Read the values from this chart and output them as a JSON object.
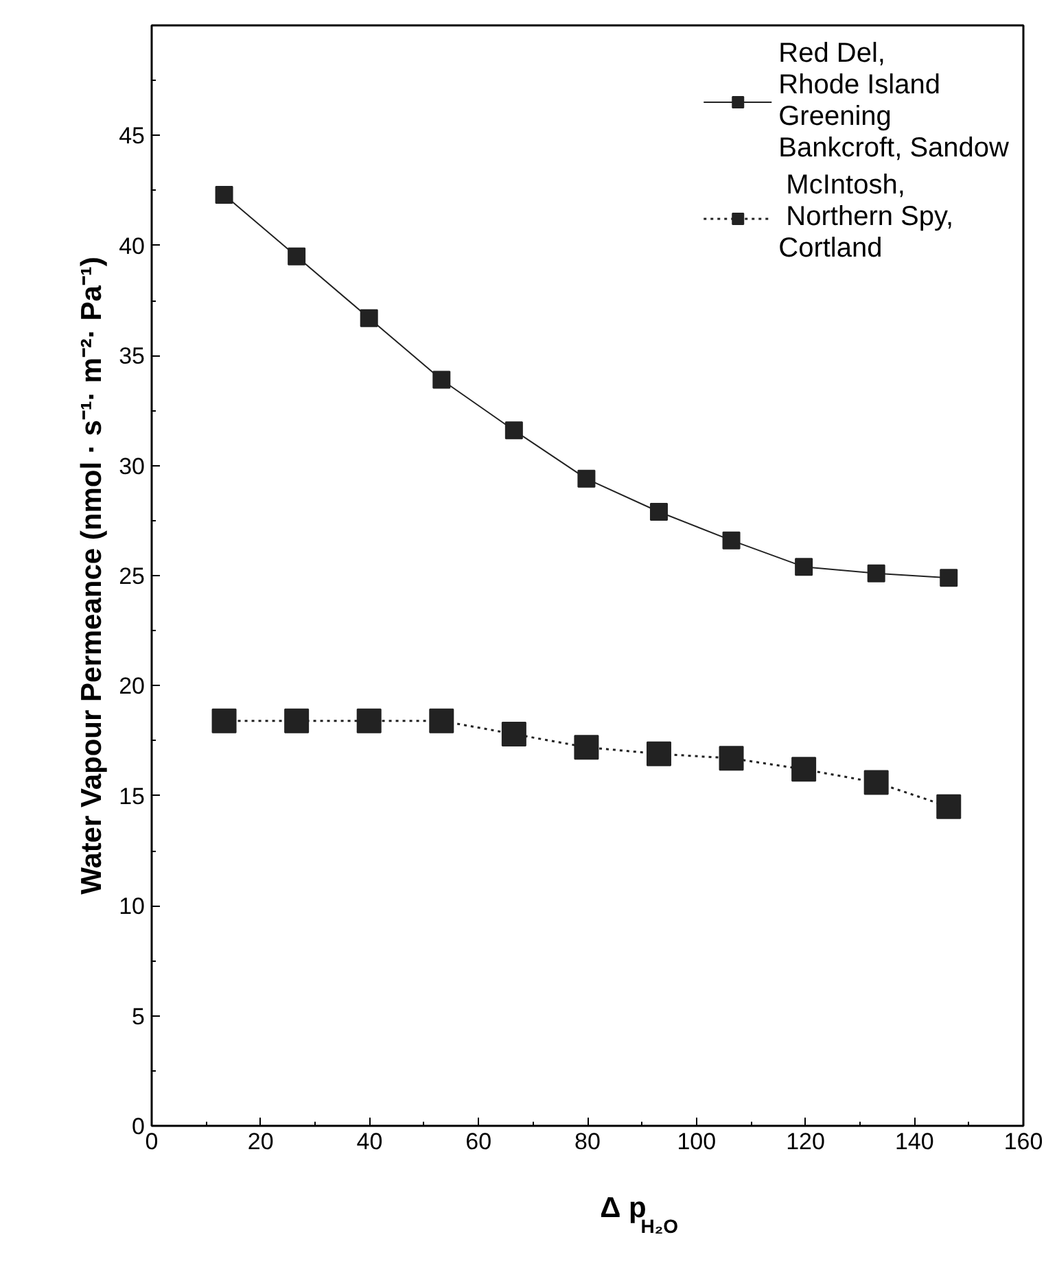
{
  "chart_data": {
    "type": "line",
    "xlabel": "Δ p$_{H₂O}$",
    "ylabel": "Water Vapour Permeance (nmol · s⁻¹· m⁻²· Pa⁻¹)",
    "x": [
      13.3,
      26.6,
      39.9,
      53.2,
      66.5,
      79.8,
      93.1,
      106.4,
      119.7,
      133,
      146.3
    ],
    "series": [
      {
        "name": "Red Del,\nRhode Island\nGreening\nBankcroft, Sandow",
        "color": "#222222",
        "marker": "square",
        "line_style": "solid",
        "values": [
          42.3,
          39.5,
          36.7,
          33.9,
          31.6,
          29.4,
          27.9,
          26.6,
          25.4,
          25.1,
          24.9
        ]
      },
      {
        "name": " McIntosh,\n Northern Spy,\nCortland",
        "color": "#222222",
        "marker": "square",
        "line_style": "dotted",
        "values": [
          18.4,
          18.4,
          18.4,
          18.4,
          17.8,
          17.2,
          16.9,
          16.7,
          16.2,
          15.6,
          14.5
        ]
      }
    ],
    "xlim": [
      0,
      160
    ],
    "ylim": [
      0,
      50
    ],
    "xticks": [
      0,
      20,
      40,
      60,
      80,
      100,
      120,
      140,
      160
    ],
    "yticks": [
      0,
      5,
      10,
      15,
      20,
      25,
      30,
      35,
      40,
      45
    ],
    "grid": false,
    "legend": "top right"
  }
}
